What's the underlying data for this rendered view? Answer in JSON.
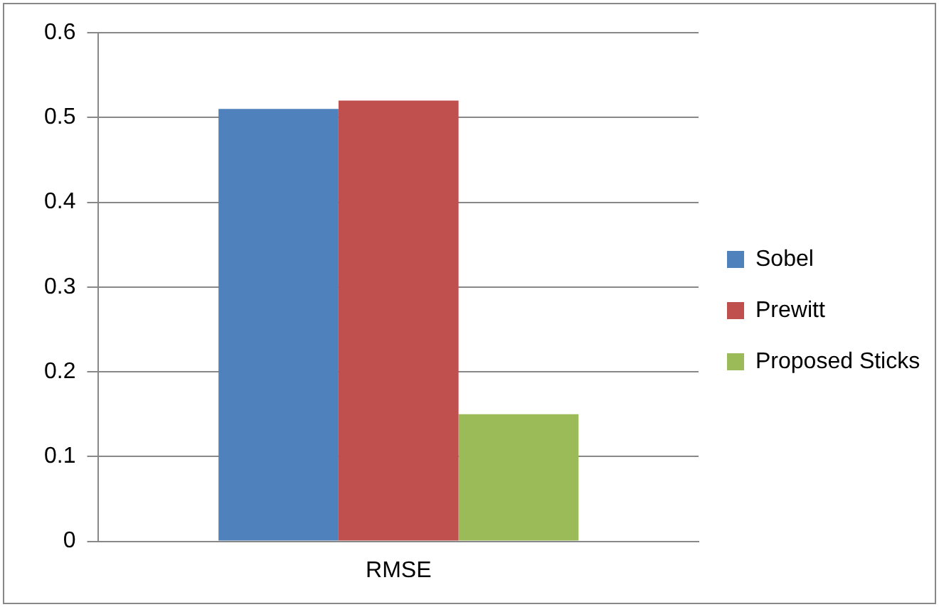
{
  "chart_data": {
    "type": "bar",
    "categories": [
      "RMSE"
    ],
    "series": [
      {
        "name": "Sobel",
        "color": "#4f81bd",
        "values": [
          0.51
        ]
      },
      {
        "name": "Prewitt",
        "color": "#c0504d",
        "values": [
          0.52
        ]
      },
      {
        "name": "Proposed Sticks",
        "color": "#9bbb59",
        "values": [
          0.15
        ]
      }
    ],
    "ylim": [
      0,
      0.6
    ],
    "yticks": [
      0,
      0.1,
      0.2,
      0.3,
      0.4,
      0.5,
      0.6
    ],
    "grid": "y",
    "legend": "right"
  }
}
